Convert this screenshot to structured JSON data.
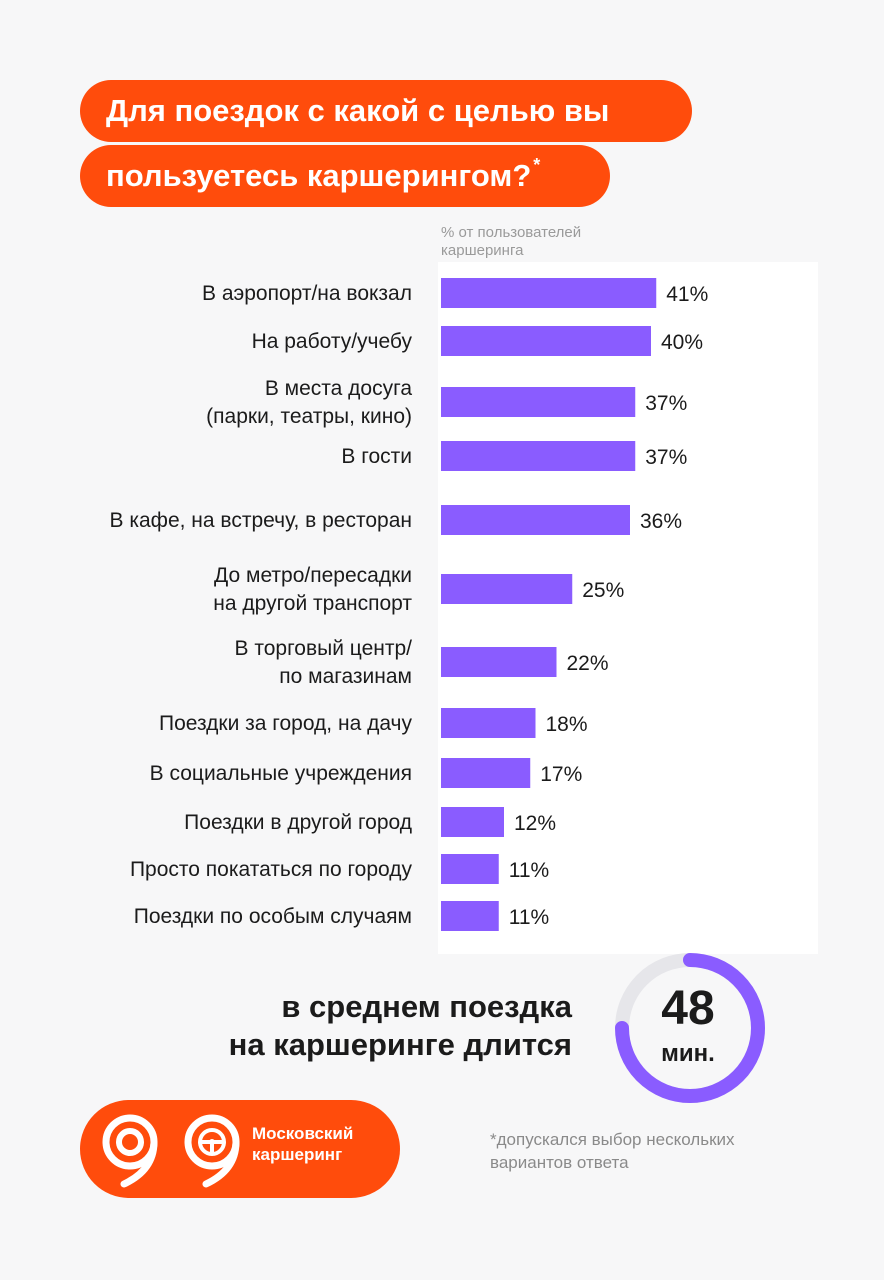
{
  "title": {
    "line1": "Для поездок с какой с целью вы",
    "line2": "пользуетесь каршерингом?",
    "asterisk": "*"
  },
  "axis_note": "% от пользователей каршеринга",
  "colors": {
    "accent": "#ff4c0c",
    "bar": "#8a5cff"
  },
  "chart_data": {
    "type": "bar",
    "orientation": "horizontal",
    "unit": "%",
    "xlim": [
      0,
      60
    ],
    "categories": [
      [
        "В аэропорт/на вокзал"
      ],
      [
        "На работу/учебу"
      ],
      [
        "В места досуга",
        "(парки, театры, кино)"
      ],
      [
        "В гости"
      ],
      [
        "В кафе, на встречу, в ресторан"
      ],
      [
        "До метро/пересадки",
        "на другой транспорт"
      ],
      [
        "В торговый центр/",
        "по магазинам"
      ],
      [
        "Поездки за город, на дачу"
      ],
      [
        "В социальные учреждения"
      ],
      [
        "Поездки в другой город"
      ],
      [
        "Просто покататься по городу"
      ],
      [
        "Поездки по особым случаям"
      ]
    ],
    "values": [
      41,
      40,
      37,
      37,
      36,
      25,
      22,
      18,
      17,
      12,
      11,
      11
    ],
    "value_labels": [
      "41%",
      "40%",
      "37%",
      "37%",
      "36%",
      "25%",
      "22%",
      "18%",
      "17%",
      "12%",
      "11%",
      "11%"
    ]
  },
  "average": {
    "text_line1": "в среднем поездка",
    "text_line2": "на каршеринге длится",
    "value": "48",
    "unit": "мин."
  },
  "brand": {
    "line1": "Московский",
    "line2": "каршеринг"
  },
  "footnote": "*допускался выбор нескольких вариантов ответа"
}
